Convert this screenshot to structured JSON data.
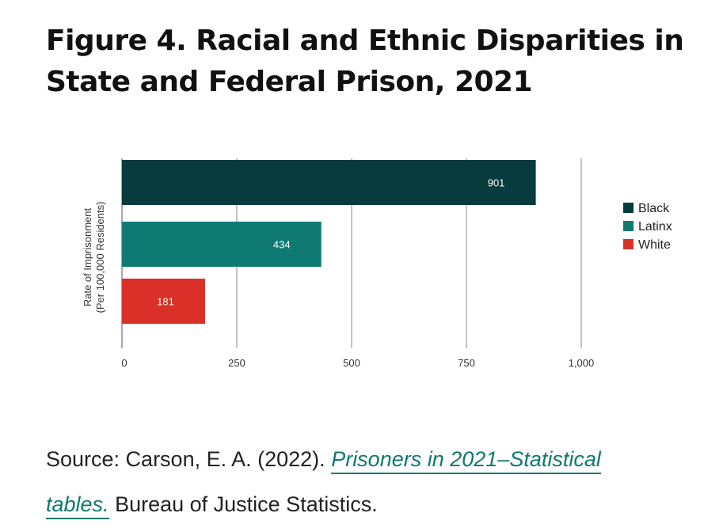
{
  "heading": {
    "line1": "Figure 4. Racial and Ethnic Disparities in",
    "line2": "State and Federal Prison, 2021"
  },
  "chart_data": {
    "type": "bar",
    "orientation": "horizontal",
    "ylabel_line1": "Rate of Imprisonment",
    "ylabel_line2": "(Per 100,000 Residents)",
    "xlim": [
      0,
      1000
    ],
    "xticks": [
      0,
      250,
      500,
      750,
      1000
    ],
    "xtick_labels": [
      "0",
      "250",
      "500",
      "750",
      "1,000"
    ],
    "grid": true,
    "legend_position": "right",
    "series": [
      {
        "name": "Black",
        "value": 901,
        "label": "901",
        "color": "#073b3e"
      },
      {
        "name": "Latinx",
        "value": 434,
        "label": "434",
        "color": "#0e7a71"
      },
      {
        "name": "White",
        "value": 181,
        "label": "181",
        "color": "#d93127"
      }
    ]
  },
  "source": {
    "prefix": "Source: Carson, E. A. (2022). ",
    "link_part1": "Prisoners in 2021–Statistical",
    "link_part2": "tables.",
    "suffix": " Bureau of Justice Statistics."
  }
}
